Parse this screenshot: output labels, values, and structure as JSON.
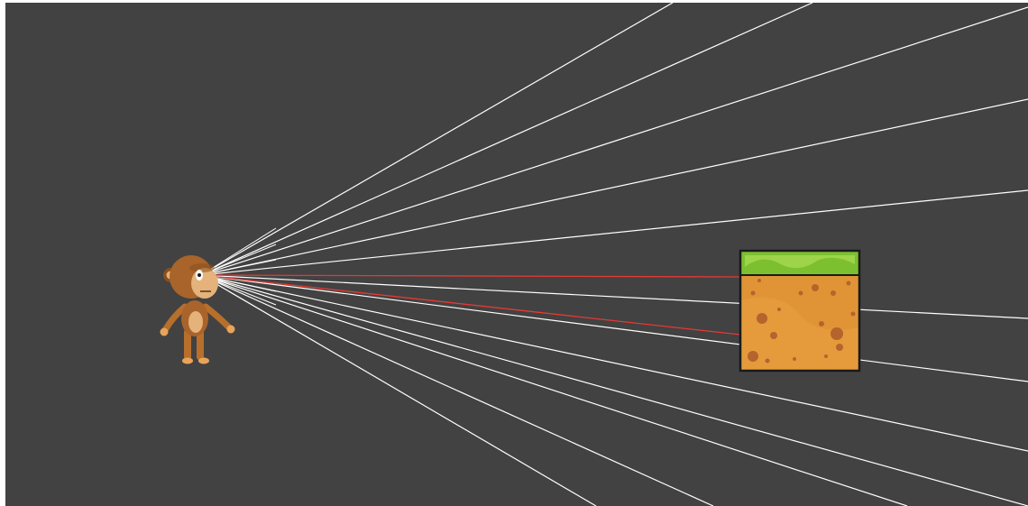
{
  "scene": {
    "background_color": "#424242",
    "ray_color": "#ffffff",
    "hit_ray_color": "#e53935",
    "rays_total": 16,
    "rays_hitting_block": 2
  },
  "player": {
    "character": "monkey",
    "colors": {
      "fur": "#a8642a",
      "fur_dark": "#8a4f1f",
      "face": "#e4b27a",
      "limbs": "#b86f2c",
      "paws": "#e8a45a",
      "eye": "#ffffff"
    }
  },
  "block": {
    "kind": "grass-dirt-tile",
    "colors": {
      "grass": "#7cc030",
      "grass_light": "#a6d850",
      "dirt": "#e09436",
      "dirt_spots": "#b4642c",
      "outline": "#1a1a1a"
    }
  }
}
